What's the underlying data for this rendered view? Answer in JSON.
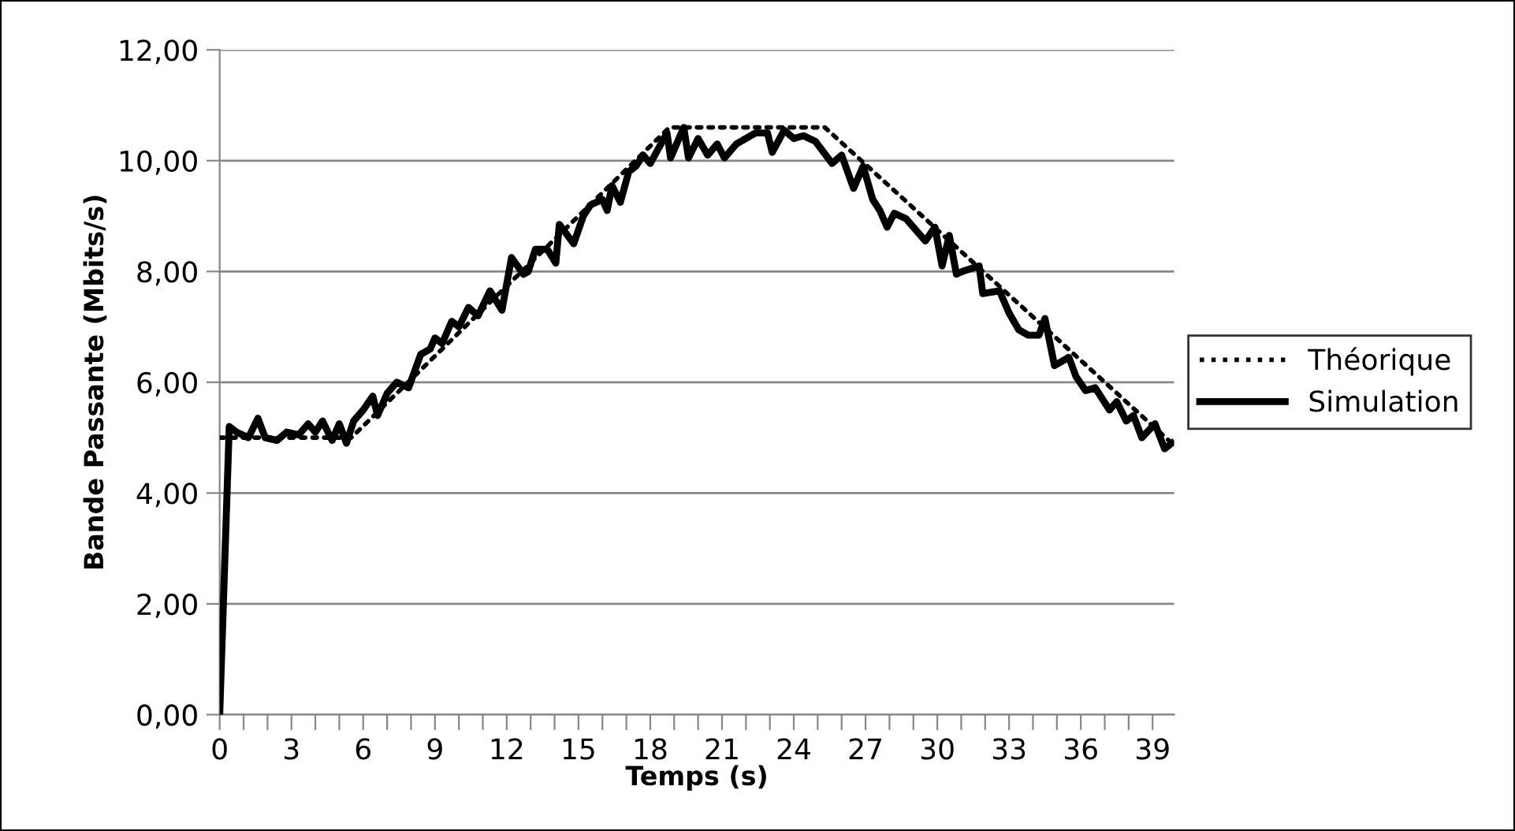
{
  "chart_data": {
    "type": "line",
    "xlabel": "Temps (s)",
    "ylabel": "Bande Passante (Mbits/s)",
    "xlim": [
      0,
      39.9
    ],
    "ylim": [
      0,
      12
    ],
    "xticks": [
      0,
      {
        "value": 1,
        "label": null
      },
      {
        "value": 2,
        "label": null
      },
      3,
      {
        "value": 4,
        "label": null
      },
      {
        "value": 5,
        "label": null
      },
      6,
      {
        "value": 7,
        "label": null
      },
      {
        "value": 8,
        "label": null
      },
      9,
      {
        "value": 10,
        "label": null
      },
      {
        "value": 11,
        "label": null
      },
      12,
      {
        "value": 13,
        "label": null
      },
      {
        "value": 14,
        "label": null
      },
      15,
      {
        "value": 16,
        "label": null
      },
      {
        "value": 17,
        "label": null
      },
      18,
      {
        "value": 19,
        "label": null
      },
      {
        "value": 20,
        "label": null
      },
      21,
      {
        "value": 22,
        "label": null
      },
      {
        "value": 23,
        "label": null
      },
      24,
      {
        "value": 25,
        "label": null
      },
      {
        "value": 26,
        "label": null
      },
      27,
      {
        "value": 28,
        "label": null
      },
      {
        "value": 29,
        "label": null
      },
      30,
      {
        "value": 31,
        "label": null
      },
      {
        "value": 32,
        "label": null
      },
      33,
      {
        "value": 34,
        "label": null
      },
      {
        "value": 35,
        "label": null
      },
      36,
      {
        "value": 37,
        "label": null
      },
      {
        "value": 38,
        "label": null
      },
      39
    ],
    "yticks": [
      {
        "value": 0,
        "label": "0,00"
      },
      {
        "value": 2,
        "label": "2,00"
      },
      {
        "value": 4,
        "label": "4,00"
      },
      {
        "value": 6,
        "label": "6,00"
      },
      {
        "value": 8,
        "label": "8,00"
      },
      {
        "value": 10,
        "label": "10,00"
      },
      {
        "value": 12,
        "label": "12,00"
      }
    ],
    "grid": "y",
    "legend": "right",
    "marker": "none",
    "series": [
      {
        "name": "Théorique",
        "color": "#000000",
        "line_style": "dotted",
        "x": [
          0,
          5.5,
          18.8,
          25.3,
          39.8
        ],
        "values": [
          5.0,
          5.0,
          10.6,
          10.6,
          4.9
        ]
      },
      {
        "name": "Simulation",
        "color": "#000000",
        "line_style": "solid",
        "x": [
          0,
          0.4,
          0.7,
          1.2,
          1.6,
          1.9,
          2.4,
          2.8,
          3.3,
          3.7,
          4.0,
          4.3,
          4.7,
          5.0,
          5.3,
          5.6,
          6.0,
          6.4,
          6.6,
          7.0,
          7.4,
          7.9,
          8.4,
          8.8,
          9.0,
          9.3,
          9.7,
          10.0,
          10.4,
          10.8,
          11.3,
          11.8,
          12.2,
          12.7,
          12.9,
          13.2,
          13.7,
          14.05,
          14.2,
          14.8,
          15.2,
          15.5,
          16.0,
          16.2,
          16.4,
          16.75,
          17.1,
          17.4,
          17.7,
          18.0,
          18.7,
          18.85,
          19.4,
          19.6,
          20.0,
          20.4,
          20.8,
          21.1,
          21.6,
          22.4,
          22.9,
          23.1,
          23.6,
          24.0,
          24.4,
          24.9,
          25.6,
          26.0,
          26.5,
          26.9,
          27.3,
          27.6,
          27.9,
          28.2,
          28.7,
          29.5,
          29.9,
          30.2,
          30.5,
          30.8,
          31.05,
          31.75,
          31.9,
          32.6,
          33.0,
          33.4,
          33.8,
          34.25,
          34.5,
          34.9,
          35.5,
          35.8,
          36.2,
          36.6,
          37.2,
          37.5,
          37.9,
          38.2,
          38.55,
          39.1,
          39.5,
          39.8
        ],
        "values": [
          0,
          5.2,
          5.1,
          5.0,
          5.35,
          5.0,
          4.95,
          5.1,
          5.05,
          5.25,
          5.1,
          5.3,
          4.95,
          5.25,
          4.9,
          5.3,
          5.5,
          5.75,
          5.4,
          5.8,
          6.0,
          5.9,
          6.5,
          6.6,
          6.8,
          6.7,
          7.1,
          7.0,
          7.35,
          7.2,
          7.65,
          7.3,
          8.25,
          7.95,
          8.0,
          8.4,
          8.4,
          8.15,
          8.85,
          8.5,
          9.0,
          9.2,
          9.3,
          9.1,
          9.55,
          9.25,
          9.8,
          9.9,
          10.1,
          9.95,
          10.5,
          10.05,
          10.6,
          10.05,
          10.4,
          10.1,
          10.3,
          10.05,
          10.3,
          10.5,
          10.5,
          10.15,
          10.55,
          10.4,
          10.45,
          10.35,
          9.95,
          10.1,
          9.5,
          9.9,
          9.3,
          9.1,
          8.8,
          9.05,
          8.95,
          8.55,
          8.8,
          8.1,
          8.65,
          7.95,
          8.0,
          8.1,
          7.6,
          7.65,
          7.25,
          6.95,
          6.85,
          6.85,
          7.15,
          6.3,
          6.45,
          6.1,
          5.85,
          5.9,
          5.5,
          5.65,
          5.3,
          5.4,
          5.0,
          5.25,
          4.8,
          4.9
        ]
      }
    ]
  }
}
